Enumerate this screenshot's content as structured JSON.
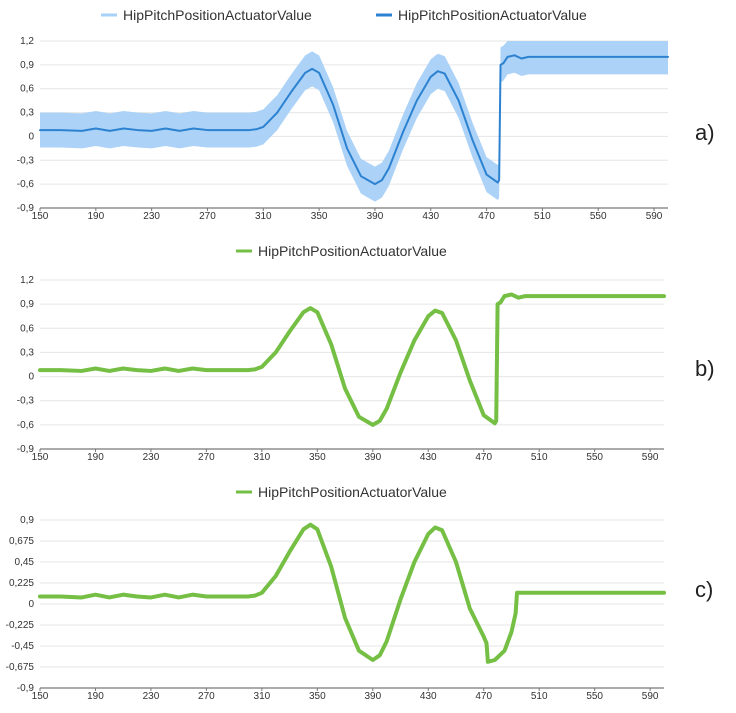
{
  "chart_data": [
    {
      "type": "line",
      "panel_label": "a)",
      "legend": [
        {
          "name": "HipPitchPositionActuatorValue",
          "color": "#a8d1f7",
          "style": "band"
        },
        {
          "name": "HipPitchPositionActuatorValue",
          "color": "#2c82d0",
          "style": "line"
        }
      ],
      "x_ticks": [
        "150",
        "190",
        "230",
        "270",
        "310",
        "350",
        "390",
        "430",
        "470",
        "510",
        "550",
        "590"
      ],
      "y_ticks": [
        "1,2",
        "0,9",
        "0,6",
        "0,3",
        "0",
        "-0,3",
        "-0,6",
        "-0,9"
      ],
      "xlim": [
        150,
        600
      ],
      "ylim": [
        -0.9,
        1.2
      ],
      "grid": true,
      "legend_position": "top",
      "band_color": "#a8d1f7",
      "line_color": "#2c82d0",
      "series": [
        {
          "x": [
            150,
            165,
            180,
            190,
            200,
            210,
            220,
            230,
            240,
            250,
            260,
            270,
            280,
            290,
            300,
            305,
            310,
            320,
            330,
            340,
            345,
            350,
            360,
            370,
            380,
            390,
            395,
            400,
            410,
            420,
            430,
            435,
            440,
            450,
            460,
            470,
            478,
            479,
            480,
            482,
            485,
            490,
            495,
            500,
            600
          ],
          "y": [
            0.08,
            0.08,
            0.07,
            0.1,
            0.07,
            0.1,
            0.08,
            0.07,
            0.1,
            0.07,
            0.1,
            0.08,
            0.08,
            0.08,
            0.08,
            0.09,
            0.12,
            0.3,
            0.56,
            0.8,
            0.85,
            0.8,
            0.4,
            -0.15,
            -0.5,
            -0.6,
            -0.55,
            -0.4,
            0.05,
            0.45,
            0.75,
            0.82,
            0.79,
            0.45,
            -0.05,
            -0.48,
            -0.58,
            -0.55,
            0.9,
            0.92,
            1.0,
            1.02,
            0.98,
            1.0,
            1.0
          ],
          "band_half_width": [
            0.22,
            0.22,
            0.22,
            0.22,
            0.22,
            0.22,
            0.22,
            0.22,
            0.22,
            0.22,
            0.22,
            0.22,
            0.22,
            0.22,
            0.22,
            0.22,
            0.22,
            0.22,
            0.22,
            0.22,
            0.22,
            0.22,
            0.22,
            0.22,
            0.22,
            0.22,
            0.22,
            0.22,
            0.22,
            0.22,
            0.22,
            0.22,
            0.22,
            0.22,
            0.22,
            0.22,
            0.22,
            0.22,
            0.22,
            0.22,
            0.22,
            0.22,
            0.22,
            0.22,
            0.22
          ]
        }
      ]
    },
    {
      "type": "line",
      "panel_label": "b)",
      "legend": [
        {
          "name": "HipPitchPositionActuatorValue",
          "color": "#74bf44",
          "style": "line"
        }
      ],
      "x_ticks": [
        "150",
        "190",
        "230",
        "270",
        "310",
        "350",
        "390",
        "430",
        "470",
        "510",
        "550",
        "590"
      ],
      "y_ticks": [
        "1,2",
        "0,9",
        "0,6",
        "0,3",
        "0",
        "-0,3",
        "-0,6",
        "-0,9"
      ],
      "xlim": [
        150,
        600
      ],
      "ylim": [
        -0.9,
        1.2
      ],
      "grid": true,
      "legend_position": "top",
      "line_color": "#74bf44",
      "series": [
        {
          "x": [
            150,
            165,
            180,
            190,
            200,
            210,
            220,
            230,
            240,
            250,
            260,
            270,
            280,
            290,
            300,
            305,
            310,
            320,
            330,
            340,
            345,
            350,
            360,
            370,
            380,
            390,
            395,
            400,
            410,
            420,
            430,
            435,
            440,
            450,
            460,
            470,
            478,
            479,
            480,
            482,
            485,
            490,
            495,
            500,
            600
          ],
          "y": [
            0.08,
            0.08,
            0.07,
            0.1,
            0.07,
            0.1,
            0.08,
            0.07,
            0.1,
            0.07,
            0.1,
            0.08,
            0.08,
            0.08,
            0.08,
            0.09,
            0.12,
            0.3,
            0.56,
            0.8,
            0.85,
            0.8,
            0.4,
            -0.15,
            -0.5,
            -0.6,
            -0.55,
            -0.4,
            0.05,
            0.45,
            0.75,
            0.82,
            0.79,
            0.45,
            -0.05,
            -0.48,
            -0.58,
            -0.55,
            0.9,
            0.92,
            1.0,
            1.02,
            0.98,
            1.0,
            1.0
          ]
        }
      ]
    },
    {
      "type": "line",
      "panel_label": "c)",
      "legend": [
        {
          "name": "HipPitchPositionActuatorValue",
          "color": "#74bf44",
          "style": "line"
        }
      ],
      "x_ticks": [
        "150",
        "190",
        "230",
        "270",
        "310",
        "350",
        "390",
        "430",
        "470",
        "510",
        "550",
        "590"
      ],
      "y_ticks": [
        "0,9",
        "0,675",
        "0,45",
        "0,225",
        "0",
        "-0,225",
        "-0,45",
        "-0,675",
        "-0,9"
      ],
      "xlim": [
        150,
        600
      ],
      "ylim": [
        -0.9,
        0.9
      ],
      "grid": true,
      "legend_position": "top",
      "line_color": "#74bf44",
      "series": [
        {
          "x": [
            150,
            165,
            180,
            190,
            200,
            210,
            220,
            230,
            240,
            250,
            260,
            270,
            280,
            290,
            300,
            305,
            310,
            320,
            330,
            340,
            345,
            350,
            360,
            370,
            380,
            390,
            395,
            400,
            410,
            420,
            430,
            435,
            440,
            450,
            460,
            470,
            472,
            473,
            478,
            485,
            490,
            493,
            494,
            600
          ],
          "y": [
            0.08,
            0.08,
            0.07,
            0.1,
            0.07,
            0.1,
            0.08,
            0.07,
            0.1,
            0.07,
            0.1,
            0.08,
            0.08,
            0.08,
            0.08,
            0.09,
            0.12,
            0.3,
            0.56,
            0.8,
            0.85,
            0.8,
            0.4,
            -0.15,
            -0.5,
            -0.6,
            -0.55,
            -0.4,
            0.05,
            0.45,
            0.75,
            0.82,
            0.79,
            0.45,
            -0.05,
            -0.35,
            -0.42,
            -0.62,
            -0.6,
            -0.5,
            -0.3,
            -0.1,
            0.12,
            0.12
          ]
        }
      ]
    }
  ]
}
